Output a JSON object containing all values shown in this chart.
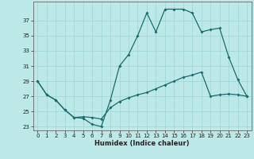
{
  "xlabel": "Humidex (Indice chaleur)",
  "bg_color": "#bde8e8",
  "line_color": "#1a6b6b",
  "grid_color": "#9dd4d4",
  "line1_x": [
    0,
    1,
    2,
    3,
    4,
    5,
    6,
    7,
    8,
    9,
    10,
    11,
    12,
    13,
    14,
    15,
    16,
    17,
    18,
    19,
    20,
    21,
    22,
    23
  ],
  "line1_y": [
    29.0,
    27.2,
    26.5,
    25.2,
    24.2,
    24.1,
    23.3,
    23.0,
    26.5,
    31.0,
    32.5,
    35.0,
    38.0,
    35.5,
    38.5,
    38.5,
    38.5,
    38.0,
    35.5,
    35.8,
    36.0,
    32.2,
    29.2,
    27.0
  ],
  "line2_x": [
    0,
    1,
    2,
    3,
    4,
    5,
    6,
    7,
    8,
    9,
    10,
    11,
    12,
    13,
    14,
    15,
    16,
    17,
    18,
    19,
    20,
    21,
    22,
    23
  ],
  "line2_y": [
    29.0,
    27.2,
    26.5,
    25.2,
    24.2,
    24.3,
    24.2,
    24.0,
    25.5,
    26.3,
    26.8,
    27.2,
    27.5,
    28.0,
    28.5,
    29.0,
    29.5,
    29.8,
    30.2,
    27.0,
    27.2,
    27.3,
    27.2,
    27.0
  ],
  "xlim": [
    -0.5,
    23.5
  ],
  "ylim": [
    22.5,
    39.5
  ],
  "yticks": [
    23,
    25,
    27,
    29,
    31,
    33,
    35,
    37
  ],
  "xticks": [
    0,
    1,
    2,
    3,
    4,
    5,
    6,
    7,
    8,
    9,
    10,
    11,
    12,
    13,
    14,
    15,
    16,
    17,
    18,
    19,
    20,
    21,
    22,
    23
  ],
  "marker": "D",
  "markersize": 2.0,
  "linewidth": 0.9,
  "tick_fontsize": 5.0,
  "xlabel_fontsize": 6.0
}
